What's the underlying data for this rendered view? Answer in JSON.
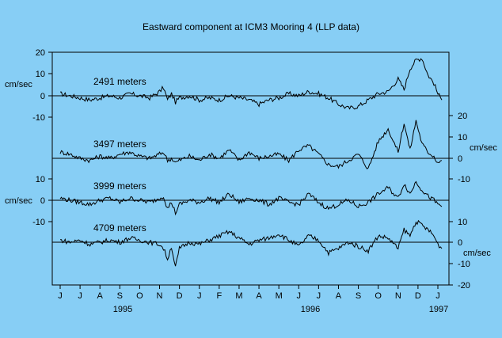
{
  "chart_data": {
    "type": "line",
    "title": "Eastward component at ICM3 Mooring 4 (LLP data)",
    "unit_label": "cm/sec",
    "x_month_labels": [
      "J",
      "J",
      "A",
      "S",
      "O",
      "N",
      "D",
      "J",
      "F",
      "M",
      "A",
      "M",
      "J",
      "J",
      "A",
      "S",
      "O",
      "N",
      "D",
      "J"
    ],
    "x_year_labels": [
      "1995",
      "1996",
      "1997"
    ],
    "left_axis_ticks": {
      "top": [
        "20",
        "10",
        "0",
        "-10"
      ],
      "bottom": [
        "10",
        "0",
        "-10"
      ]
    },
    "right_axis_ticks": {
      "top": [
        "20",
        "10",
        "0",
        "-10"
      ],
      "bottom": [
        "10",
        "0",
        "-10",
        "-20"
      ]
    },
    "series_x_months": [
      0,
      0.5,
      1,
      1.5,
      2,
      2.5,
      3,
      3.5,
      4,
      4.5,
      5,
      5.2,
      5.4,
      5.6,
      5.8,
      6,
      6.5,
      7,
      7.5,
      8,
      8.5,
      9,
      9.5,
      10,
      10.5,
      11,
      11.5,
      12,
      12.5,
      13,
      13.5,
      14,
      14.5,
      15,
      15.5,
      16,
      16.5,
      17,
      17.3,
      17.6,
      17.9,
      18.2,
      18.5,
      18.8,
      19,
      19.2
    ],
    "series": [
      {
        "name": "2491 meters",
        "values": [
          1,
          0,
          -1,
          -2,
          -1,
          0,
          -1,
          1,
          0,
          -1,
          2,
          4,
          -2,
          1,
          -3,
          -1,
          0,
          -2,
          -1,
          -2,
          0,
          -1,
          -2,
          -4,
          -2,
          -1,
          1,
          0,
          2,
          1,
          -1,
          -4,
          -6,
          -5,
          -2,
          1,
          2,
          8,
          3,
          13,
          17,
          18,
          10,
          6,
          1,
          -2
        ]
      },
      {
        "name": "3497 meters",
        "values": [
          3,
          2,
          0,
          -1,
          1,
          0,
          2,
          3,
          1,
          0,
          2,
          3,
          -1,
          0,
          -2,
          -1,
          1,
          -1,
          2,
          0,
          4,
          -1,
          3,
          0,
          1,
          2,
          -1,
          4,
          6,
          2,
          -3,
          -4,
          -1,
          2,
          -5,
          8,
          14,
          3,
          17,
          4,
          18,
          7,
          3,
          1,
          -2,
          -1
        ]
      },
      {
        "name": "3999 meters",
        "values": [
          1,
          0,
          -1,
          -2,
          0,
          1,
          -1,
          1,
          0,
          -1,
          1,
          2,
          -4,
          -1,
          -6,
          -2,
          0,
          -1,
          1,
          -1,
          3,
          -1,
          1,
          0,
          -2,
          1,
          -1,
          -2,
          3,
          -1,
          -4,
          -2,
          0,
          -3,
          -1,
          3,
          6,
          1,
          8,
          3,
          9,
          5,
          2,
          0,
          -2,
          -3
        ]
      },
      {
        "name": "4709 meters",
        "values": [
          1,
          0,
          1,
          -1,
          0,
          1,
          0,
          2,
          1,
          0,
          -1,
          -3,
          -8,
          -2,
          -12,
          -3,
          0,
          -1,
          1,
          3,
          5,
          2,
          -1,
          1,
          2,
          4,
          1,
          -2,
          3,
          1,
          -5,
          -3,
          0,
          -2,
          -4,
          3,
          2,
          -3,
          6,
          3,
          10,
          8,
          6,
          3,
          -1,
          -3
        ]
      }
    ]
  }
}
